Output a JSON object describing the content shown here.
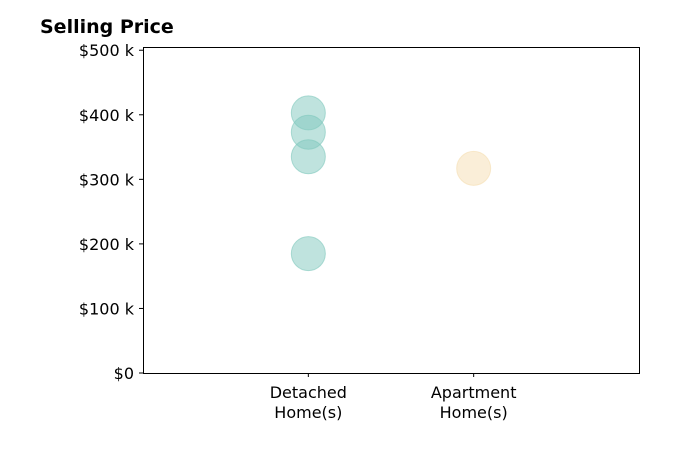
{
  "chart_data": {
    "type": "scatter",
    "title": "Selling Price",
    "xlabel": "",
    "ylabel": "",
    "categories": [
      "Detached\nHome(s)",
      "Apartment\nHome(s)"
    ],
    "xlim": [
      -1,
      2
    ],
    "ylim": [
      0,
      505
    ],
    "yticks": [
      {
        "value": 0,
        "label": "$0"
      },
      {
        "value": 100,
        "label": "$100 k"
      },
      {
        "value": 200,
        "label": "$200 k"
      },
      {
        "value": 300,
        "label": "$300 k"
      },
      {
        "value": 400,
        "label": "$400 k"
      },
      {
        "value": 500,
        "label": "$500 k"
      }
    ],
    "series": [
      {
        "category_index": 0,
        "color": "#7fc8bd",
        "values": [
          403,
          373,
          335,
          185
        ]
      },
      {
        "category_index": 1,
        "color": "#f5deb1",
        "values": [
          317
        ]
      }
    ],
    "grid": false,
    "legend": "none"
  }
}
